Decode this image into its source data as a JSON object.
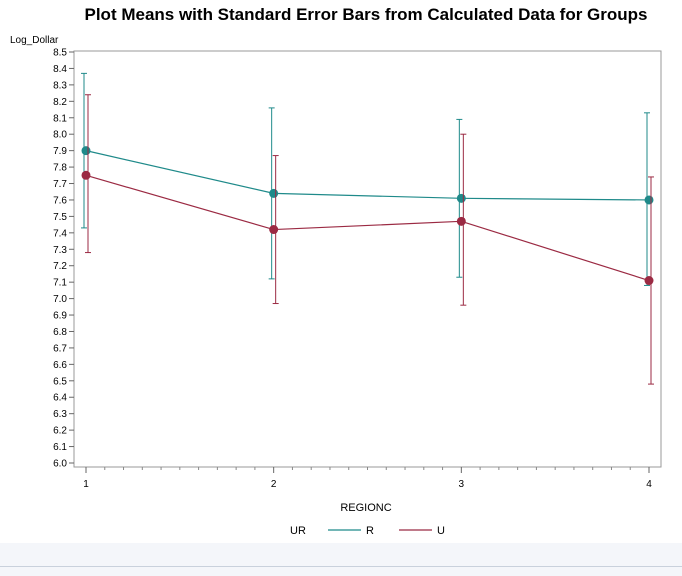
{
  "chart_data": {
    "type": "line",
    "title": "Plot Means with Standard Error Bars from Calculated Data for Groups",
    "xlabel": "REGIONC",
    "ylabel": "Log_Dollar",
    "categories": [
      "1",
      "2",
      "3",
      "4"
    ],
    "ylim": [
      6.0,
      8.5
    ],
    "yticks": [
      "6.0",
      "6.1",
      "6.2",
      "6.3",
      "6.4",
      "6.5",
      "6.6",
      "6.7",
      "6.8",
      "6.9",
      "7.0",
      "7.1",
      "7.2",
      "7.3",
      "7.4",
      "7.5",
      "7.6",
      "7.7",
      "7.8",
      "7.9",
      "8.0",
      "8.1",
      "8.2",
      "8.3",
      "8.4",
      "8.5"
    ],
    "legend_title": "UR",
    "legend_position": "bottom",
    "series": [
      {
        "name": "R",
        "color": "#1f8a8a",
        "values": [
          7.9,
          7.64,
          7.61,
          7.6
        ],
        "error_low": [
          7.43,
          7.12,
          7.13,
          7.08
        ],
        "error_high": [
          8.37,
          8.16,
          8.09,
          8.13
        ]
      },
      {
        "name": "U",
        "color": "#9b2a43",
        "values": [
          7.75,
          7.42,
          7.47,
          7.11
        ],
        "error_low": [
          7.28,
          6.97,
          6.96,
          6.48
        ],
        "error_high": [
          8.24,
          7.87,
          8.0,
          7.74
        ]
      }
    ]
  }
}
